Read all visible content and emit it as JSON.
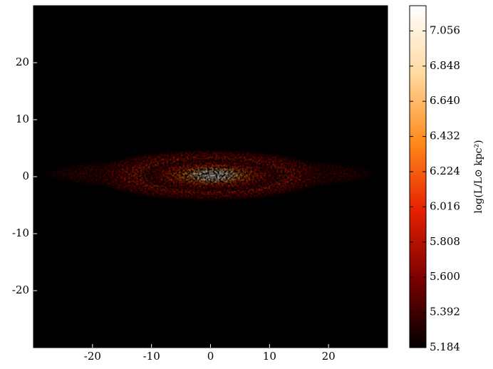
{
  "chart_data": {
    "type": "image",
    "xlim": [
      -30,
      30
    ],
    "ylim": [
      -30,
      30
    ],
    "xticks": [
      -20,
      -10,
      0,
      10,
      20
    ],
    "yticks": [
      -20,
      -10,
      0,
      10,
      20
    ],
    "colormap": [
      "#000000",
      "#7a0000",
      "#e62000",
      "#ff8a1a",
      "#ffd9a0",
      "#ffffff"
    ],
    "colorbar": {
      "label": "log(L/L⊙ kpc²)",
      "clim": [
        5.184,
        7.205
      ],
      "ticks": [
        5.184,
        5.392,
        {
          "value": 5.6,
          "label": "5.600"
        },
        5.808,
        6.016,
        6.224,
        6.432,
        {
          "value": 6.64,
          "label": "6.640"
        },
        6.848,
        7.056
      ]
    }
  }
}
